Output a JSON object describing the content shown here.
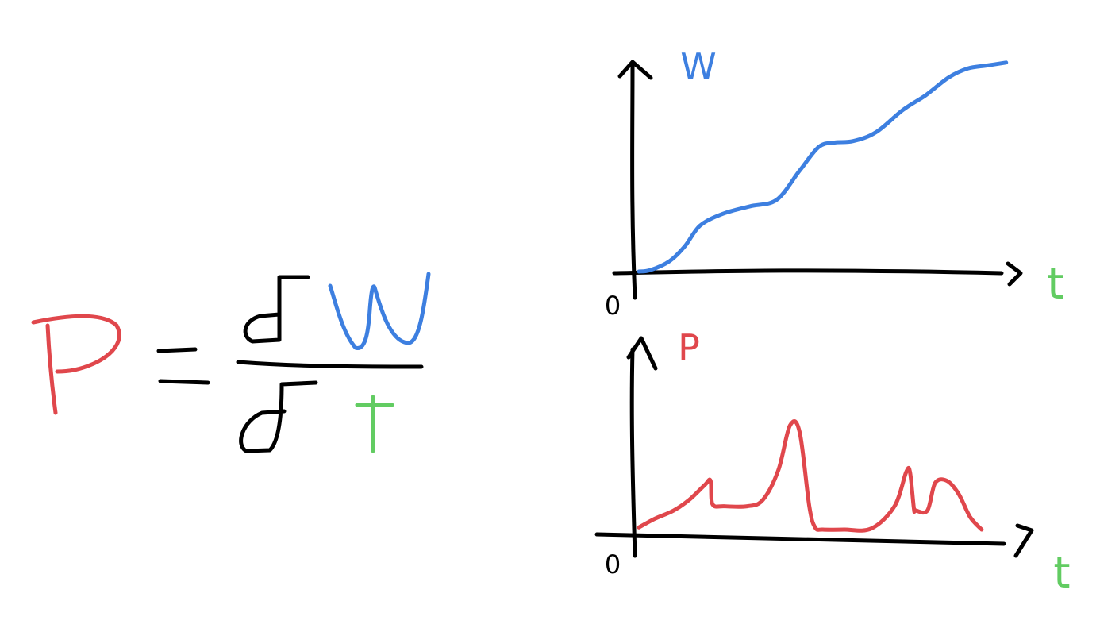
{
  "colors": {
    "ink": "#000000",
    "energy": "#3d7fe0",
    "power": "#e0474c",
    "time": "#62cc62",
    "background": "#ffffff"
  },
  "formula": {
    "lhs": "P",
    "equals": "=",
    "numerator_operator": "δ",
    "numerator_variable": "W",
    "denominator_operator": "δ",
    "denominator_variable": "t"
  },
  "chart_data": [
    {
      "type": "line",
      "title": "",
      "ylabel": "W",
      "xlabel": "t",
      "origin_label": "0",
      "series": [
        {
          "color": "#3d7fe0",
          "x": [
            0,
            0.3,
            0.8,
            1.2,
            1.6,
            2.2,
            2.9,
            3.6,
            4.2,
            4.7,
            5.1,
            5.6,
            6.2,
            6.9,
            7.5,
            8.1,
            8.6,
            9.1,
            9.6
          ],
          "values": [
            0.0,
            0.05,
            0.35,
            0.85,
            1.55,
            1.95,
            2.2,
            2.42,
            3.4,
            4.2,
            4.35,
            4.4,
            4.7,
            5.45,
            5.95,
            6.55,
            6.85,
            6.95,
            7.05
          ]
        }
      ],
      "xlim": [
        0,
        10
      ],
      "ylim": [
        0,
        7.5
      ],
      "grid": false
    },
    {
      "type": "line",
      "title": "",
      "ylabel": "P",
      "xlabel": "t",
      "origin_label": "0",
      "series": [
        {
          "color": "#e0474c",
          "x": [
            0,
            0.4,
            0.9,
            1.3,
            1.7,
            1.85,
            1.9,
            2.2,
            2.8,
            3.2,
            3.6,
            3.9,
            4.15,
            4.4,
            4.55,
            4.75,
            5.3,
            6.0,
            6.6,
            6.9,
            7.0,
            7.1,
            7.15,
            7.45,
            7.65,
            7.95,
            8.25,
            8.55,
            8.85
          ],
          "values": [
            0.1,
            0.5,
            0.9,
            1.4,
            2.1,
            2.3,
            1.2,
            1.1,
            1.1,
            1.4,
            2.8,
            4.9,
            4.6,
            1.1,
            0.1,
            0.0,
            0.0,
            0.05,
            1.1,
            2.7,
            2.7,
            1.0,
            0.9,
            0.9,
            2.2,
            2.3,
            1.7,
            0.6,
            0.0
          ]
        }
      ],
      "xlim": [
        0,
        10
      ],
      "ylim": [
        0,
        5.5
      ],
      "grid": false
    }
  ]
}
